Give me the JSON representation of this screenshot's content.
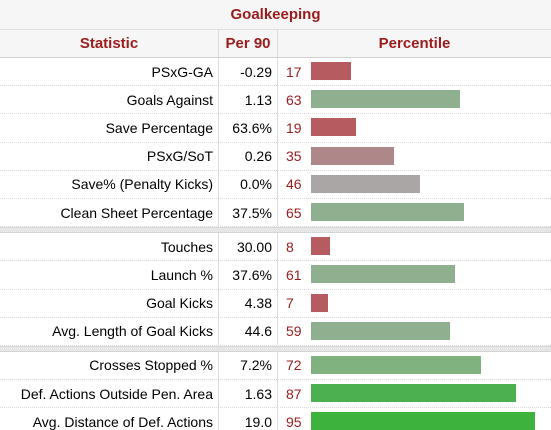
{
  "title": "Goalkeeping",
  "headers": {
    "stat": "Statistic",
    "per90": "Per 90",
    "percentile": "Percentile"
  },
  "colors": {
    "low": "#b65c60",
    "low_mid": "#ae8888",
    "mid": "#aaa6a6",
    "mid_high": "#8fb08f",
    "high": "#4caf50",
    "top": "#3db33d",
    "accent_text": "#9b1c1c"
  },
  "chart_data": {
    "type": "bar",
    "title": "Goalkeeping",
    "xlabel": "",
    "ylabel": "",
    "xlim": [
      0,
      100
    ],
    "sections": [
      {
        "rows": [
          {
            "statistic": "PSxG-GA",
            "per90": "-0.29",
            "percentile": 17,
            "color": "#b65c60"
          },
          {
            "statistic": "Goals Against",
            "per90": "1.13",
            "percentile": 63,
            "color": "#8fb08f"
          },
          {
            "statistic": "Save Percentage",
            "per90": "63.6%",
            "percentile": 19,
            "color": "#b65c60"
          },
          {
            "statistic": "PSxG/SoT",
            "per90": "0.26",
            "percentile": 35,
            "color": "#ae8888"
          },
          {
            "statistic": "Save% (Penalty Kicks)",
            "per90": "0.0%",
            "percentile": 46,
            "color": "#aaa6a6"
          },
          {
            "statistic": "Clean Sheet Percentage",
            "per90": "37.5%",
            "percentile": 65,
            "color": "#8fb08f"
          }
        ]
      },
      {
        "rows": [
          {
            "statistic": "Touches",
            "per90": "30.00",
            "percentile": 8,
            "color": "#b65c60"
          },
          {
            "statistic": "Launch %",
            "per90": "37.6%",
            "percentile": 61,
            "color": "#8fb08f"
          },
          {
            "statistic": "Goal Kicks",
            "per90": "4.38",
            "percentile": 7,
            "color": "#b65c60"
          },
          {
            "statistic": "Avg. Length of Goal Kicks",
            "per90": "44.6",
            "percentile": 59,
            "color": "#8fb08f"
          }
        ]
      },
      {
        "rows": [
          {
            "statistic": "Crosses Stopped %",
            "per90": "7.2%",
            "percentile": 72,
            "color": "#7fb27f"
          },
          {
            "statistic": "Def. Actions Outside Pen. Area",
            "per90": "1.63",
            "percentile": 87,
            "color": "#4caf50"
          },
          {
            "statistic": "Avg. Distance of Def. Actions",
            "per90": "19.0",
            "percentile": 95,
            "color": "#3db33d"
          }
        ]
      }
    ]
  }
}
